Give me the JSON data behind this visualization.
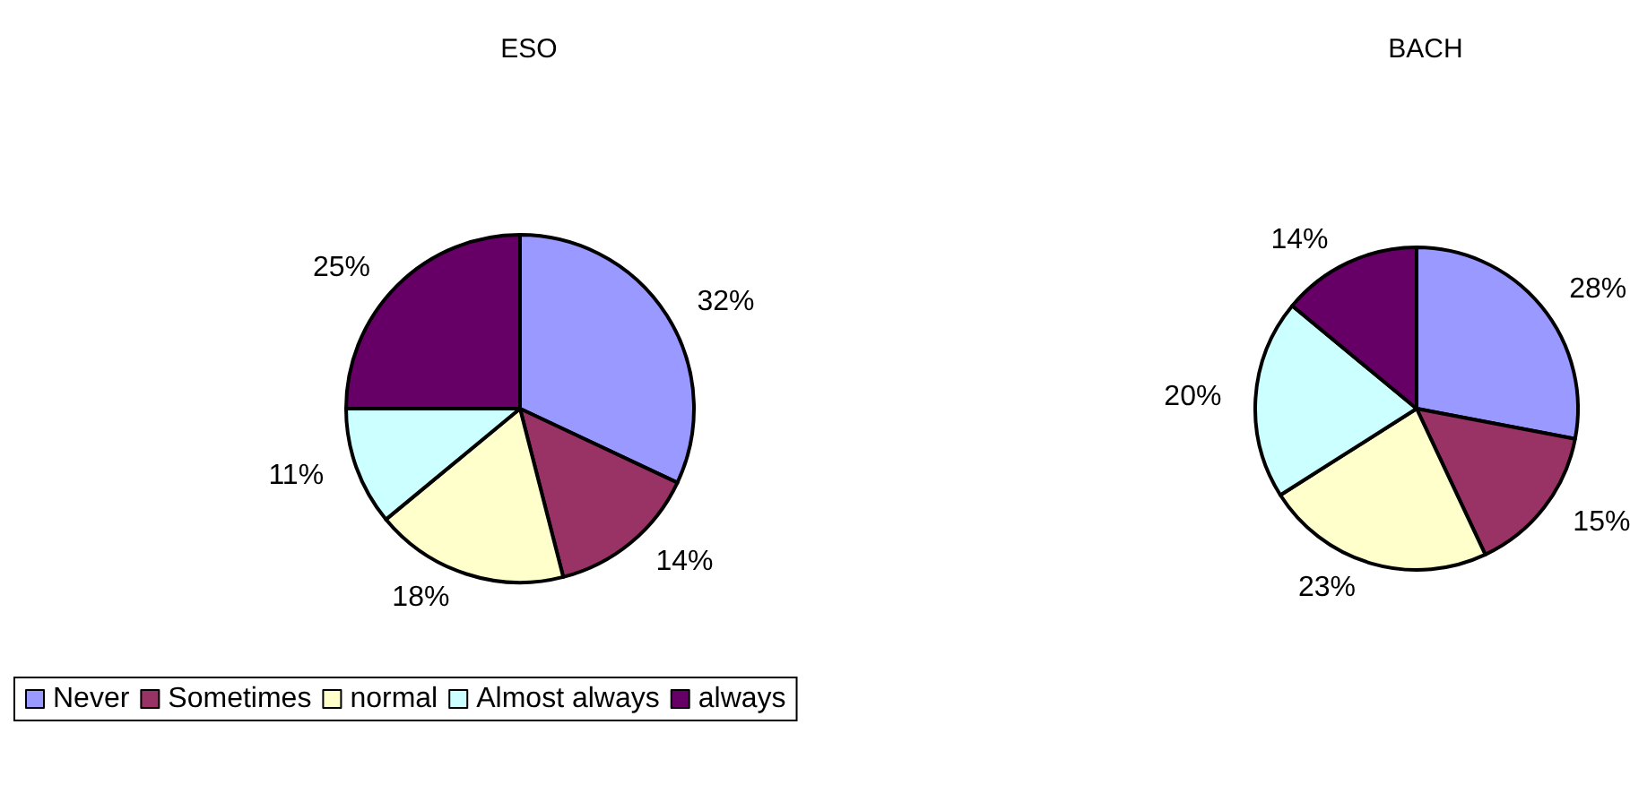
{
  "chart_data": [
    {
      "type": "pie",
      "title": "ESO",
      "categories": [
        "Never",
        "Sometimes",
        "normal",
        "Almost always",
        "always"
      ],
      "values": [
        32,
        14,
        18,
        11,
        25
      ],
      "colors": [
        "#9999ff",
        "#993366",
        "#ffffcc",
        "#ccffff",
        "#660066"
      ],
      "value_labels": [
        "32%",
        "14%",
        "18%",
        "11%",
        "25%"
      ],
      "legend": "bottom left"
    },
    {
      "type": "pie",
      "title": "BACH",
      "categories": [
        null,
        null,
        null,
        null,
        null
      ],
      "values": [
        28,
        15,
        23,
        20,
        14
      ],
      "colors": [
        "#9999ff",
        "#993366",
        "#ffffcc",
        "#ccffff",
        "#660066"
      ],
      "value_labels": [
        "28%",
        "15%",
        "23%",
        "20%",
        "14%"
      ]
    }
  ]
}
